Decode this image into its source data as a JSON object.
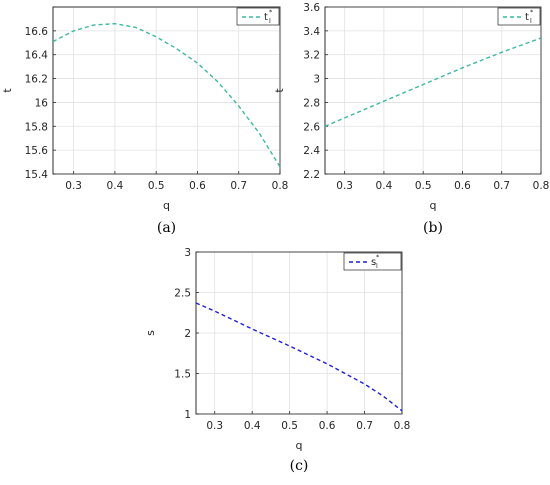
{
  "chart_data": [
    {
      "id": "a",
      "type": "line",
      "caption": "(a)",
      "xlabel": "q",
      "ylabel": "t",
      "xlim": [
        0.25,
        0.8
      ],
      "ylim": [
        15.4,
        16.8
      ],
      "xticks": [
        "0.3",
        "0.4",
        "0.5",
        "0.6",
        "0.7",
        "0.8"
      ],
      "yticks": [
        "15.4",
        "15.6",
        "15.8",
        "16",
        "16.2",
        "16.4",
        "16.6"
      ],
      "grid": true,
      "legend_position": "top-right",
      "series": [
        {
          "name": "t",
          "name_sub": "l",
          "name_sup": "*",
          "color": "#3cb9a0",
          "style": "dashed",
          "x": [
            0.25,
            0.3,
            0.35,
            0.4,
            0.45,
            0.5,
            0.55,
            0.6,
            0.65,
            0.7,
            0.75,
            0.8
          ],
          "y": [
            16.51,
            16.6,
            16.65,
            16.66,
            16.63,
            16.55,
            16.45,
            16.33,
            16.17,
            15.97,
            15.74,
            15.46
          ]
        }
      ]
    },
    {
      "id": "b",
      "type": "line",
      "caption": "(b)",
      "xlabel": "q",
      "ylabel": "t",
      "xlim": [
        0.25,
        0.8
      ],
      "ylim": [
        2.2,
        3.6
      ],
      "xticks": [
        "0.3",
        "0.4",
        "0.5",
        "0.6",
        "0.7",
        "0.8"
      ],
      "yticks": [
        "2.2",
        "2.4",
        "2.6",
        "2.8",
        "3",
        "3.2",
        "3.4",
        "3.6"
      ],
      "grid": true,
      "legend_position": "top-right",
      "series": [
        {
          "name": "t",
          "name_sub": "l",
          "name_sup": "*",
          "color": "#3cb9a0",
          "style": "dashed",
          "x": [
            0.25,
            0.3,
            0.4,
            0.5,
            0.6,
            0.7,
            0.8
          ],
          "y": [
            2.6,
            2.67,
            2.81,
            2.95,
            3.09,
            3.22,
            3.34
          ]
        }
      ]
    },
    {
      "id": "c",
      "type": "line",
      "caption": "(c)",
      "xlabel": "q",
      "ylabel": "s",
      "xlim": [
        0.25,
        0.8
      ],
      "ylim": [
        1,
        3
      ],
      "xticks": [
        "0.3",
        "0.4",
        "0.5",
        "0.6",
        "0.7",
        "0.8"
      ],
      "yticks": [
        "1",
        "1.5",
        "2",
        "2.5",
        "3"
      ],
      "grid": true,
      "legend_position": "top-right",
      "series": [
        {
          "name": "s",
          "name_sub": "l",
          "name_sup": "*",
          "color": "#1f1fdc",
          "style": "dashed",
          "x": [
            0.25,
            0.3,
            0.4,
            0.5,
            0.6,
            0.7,
            0.75,
            0.8
          ],
          "y": [
            2.37,
            2.27,
            2.05,
            1.84,
            1.62,
            1.37,
            1.22,
            1.04
          ]
        }
      ]
    }
  ]
}
